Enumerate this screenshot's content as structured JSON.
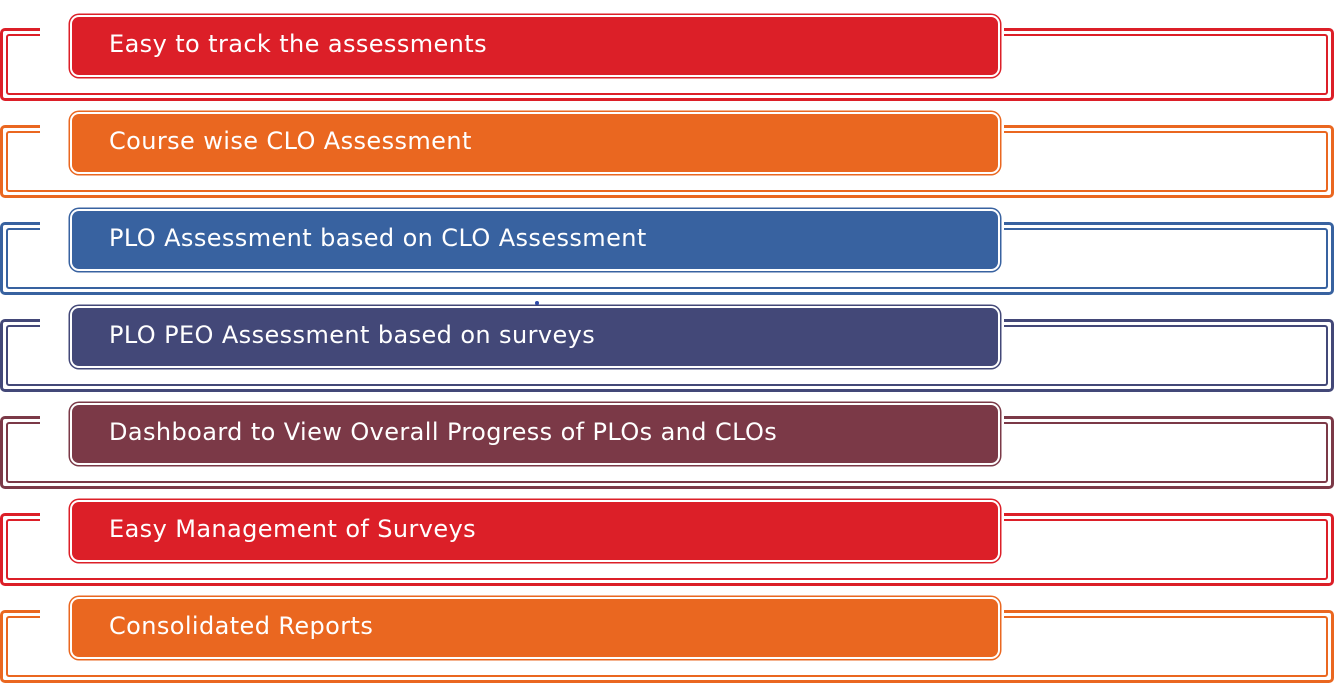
{
  "items": [
    {
      "label": "Easy to track the assessments",
      "color": "#dc1f28"
    },
    {
      "label": "Course wise CLO Assessment",
      "color": "#ea6720"
    },
    {
      "label": "PLO Assessment based on CLO Assessment",
      "color": "#3862a0"
    },
    {
      "label": "PLO PEO Assessment based on surveys",
      "color": "#434878"
    },
    {
      "label": "Dashboard to View Overall Progress of PLOs and CLOs",
      "color": "#7b3947"
    },
    {
      "label": "Easy Management of Surveys",
      "color": "#dc1f28"
    },
    {
      "label": "Consolidated Reports",
      "color": "#ea6720"
    }
  ]
}
